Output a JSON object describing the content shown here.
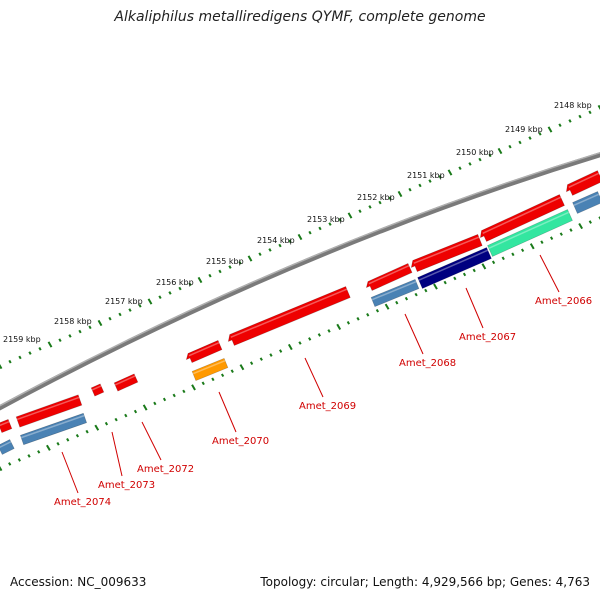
{
  "title": "Alkaliphilus metalliredigens QYMF, complete genome",
  "footer": {
    "accession": "Accession: NC_009633",
    "summary": "Topology: circular; Length: 4,929,566 bp; Genes: 4,763"
  },
  "colors": {
    "backbone": "#808080",
    "forward_gene": "#ee0000",
    "ticks": "#1a7a1a",
    "label": "#d00000",
    "blue_cds": "#4a82b4",
    "navy_cds": "#000080",
    "cyan_cds": "#33e6a0",
    "orange_cds": "#ff9900"
  },
  "scale_labels": [
    "2148 kbp",
    "2149 kbp",
    "2150 kbp",
    "2151 kbp",
    "2152 kbp",
    "2153 kbp",
    "2154 kbp",
    "2155 kbp",
    "2156 kbp",
    "2157 kbp",
    "2158 kbp",
    "2159 kbp"
  ],
  "gene_labels": [
    "Amet_2066",
    "Amet_2067",
    "Amet_2068",
    "Amet_2069",
    "Amet_2070",
    "Amet_2072",
    "Amet_2073",
    "Amet_2074"
  ]
}
